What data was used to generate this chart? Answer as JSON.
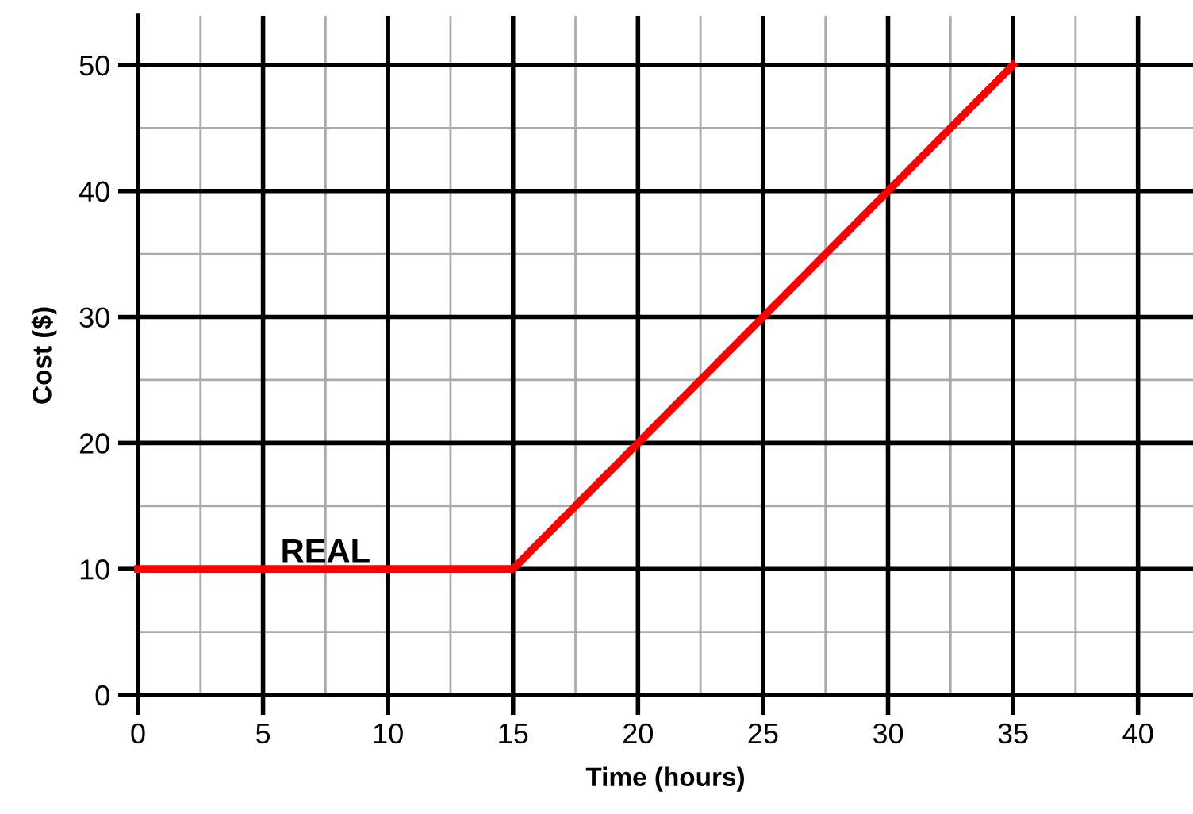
{
  "chart_data": {
    "type": "line",
    "xlabel": "Time (hours)",
    "ylabel": "Cost ($)",
    "series": [
      {
        "name": "REAL",
        "color": "#ff0000",
        "x": [
          0,
          15,
          35
        ],
        "values": [
          10,
          10,
          50
        ]
      }
    ],
    "xlim": [
      0,
      42.2
    ],
    "ylim": [
      0,
      53.9
    ],
    "xticks": [
      0,
      5,
      10,
      15,
      20,
      25,
      30,
      35,
      40
    ],
    "yticks": [
      0,
      10,
      20,
      30,
      40,
      50
    ],
    "grid": true,
    "legend": false,
    "marker": "none",
    "line_style": "solid"
  }
}
